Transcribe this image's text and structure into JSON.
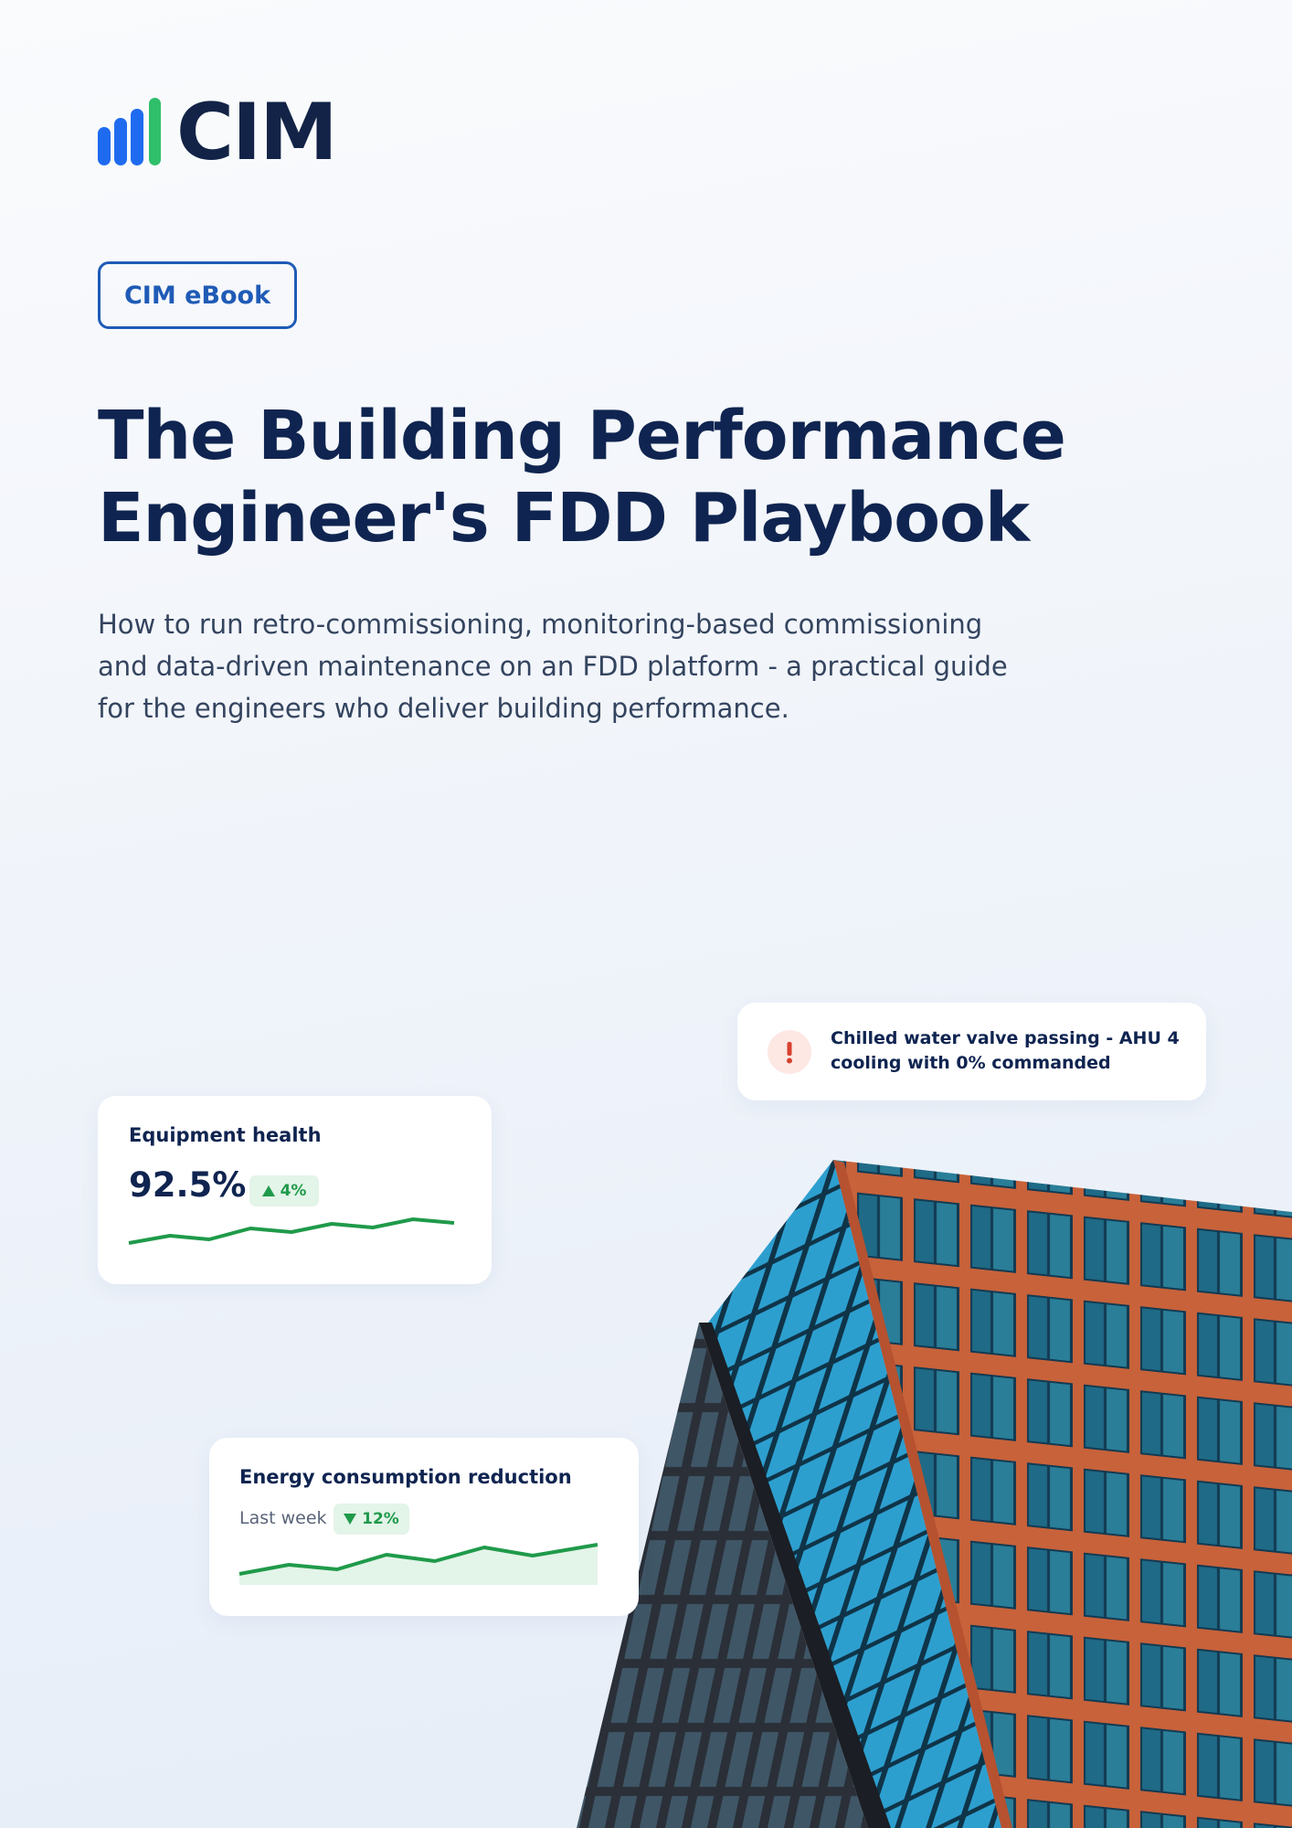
{
  "header": {
    "logo": "CIM",
    "badge": "CIM eBook"
  },
  "title_lines": [
    "The Building Performance",
    "Engineer's FDD Playbook"
  ],
  "subtitle_lines": [
    "How to run retro-commissioning, monitoring-based commissioning",
    "and data-driven maintenance on an FDD platform - a practical guide",
    "for the engineers who deliver building performance."
  ],
  "alert_card": {
    "lines": [
      "Chilled water valve passing - AHU 4",
      "cooling with 0% commanded"
    ]
  },
  "health_card": {
    "title": "Equipment health",
    "value": "92.5%",
    "change": "4%"
  },
  "energy_card": {
    "title": "Energy consumption reduction",
    "period": "Last week",
    "change": "12%"
  }
}
